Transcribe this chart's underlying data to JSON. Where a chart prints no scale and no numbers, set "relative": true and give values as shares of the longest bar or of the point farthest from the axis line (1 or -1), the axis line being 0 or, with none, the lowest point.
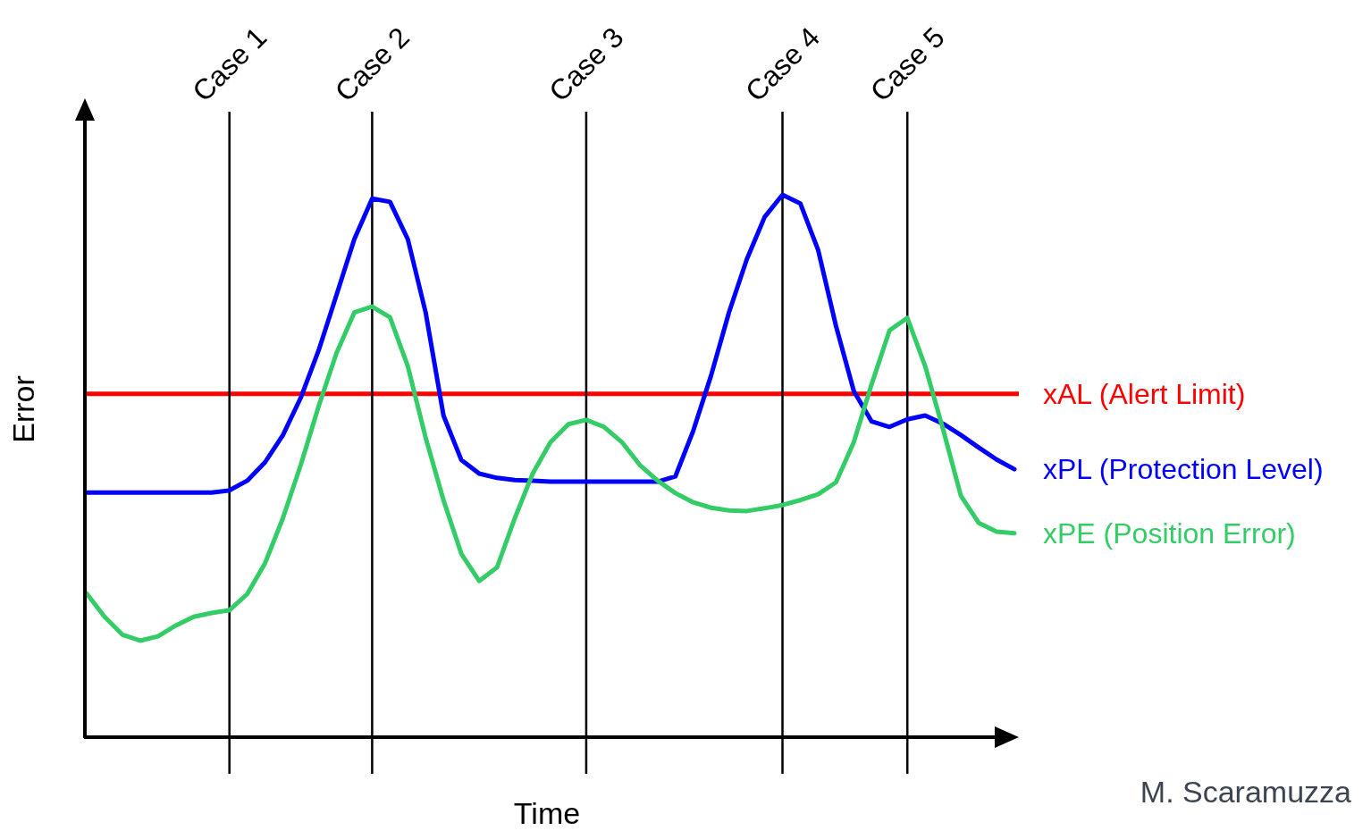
{
  "chart_data": {
    "type": "line",
    "relative": true,
    "xlabel": "Time",
    "ylabel": "Error",
    "line_style": "solid",
    "marker": "none",
    "categories": [
      null,
      null,
      null,
      null,
      null,
      null,
      null,
      null,
      "Case 1",
      null,
      null,
      null,
      null,
      null,
      null,
      null,
      "Case 2",
      null,
      null,
      null,
      null,
      null,
      null,
      null,
      null,
      null,
      null,
      null,
      "Case 3",
      null,
      null,
      null,
      null,
      null,
      null,
      null,
      null,
      null,
      null,
      "Case 4",
      null,
      null,
      null,
      null,
      null,
      null,
      "Case 5",
      null,
      null,
      null,
      null,
      null,
      null
    ],
    "series": [
      {
        "name": "xPL (Protection Level)",
        "color": "#0000ff",
        "values": [
          0.451,
          0.451,
          0.451,
          0.451,
          0.451,
          0.451,
          0.451,
          0.451,
          0.455,
          0.473,
          0.507,
          0.557,
          0.626,
          0.713,
          0.815,
          0.918,
          0.993,
          0.987,
          0.918,
          0.783,
          0.593,
          0.511,
          0.486,
          0.478,
          0.474,
          0.473,
          0.471,
          0.471,
          0.471,
          0.471,
          0.471,
          0.471,
          0.471,
          0.481,
          0.565,
          0.667,
          0.783,
          0.881,
          0.959,
          1.0,
          0.984,
          0.898,
          0.758,
          0.638,
          0.582,
          0.572,
          0.586,
          0.593,
          0.578,
          0.557,
          0.534,
          0.512,
          0.494
        ]
      },
      {
        "name": "xPE (Position Error)",
        "color": "#33cc66",
        "values": [
          0.265,
          0.222,
          0.189,
          0.178,
          0.186,
          0.206,
          0.222,
          0.229,
          0.234,
          0.264,
          0.321,
          0.404,
          0.502,
          0.61,
          0.708,
          0.783,
          0.794,
          0.774,
          0.684,
          0.552,
          0.437,
          0.338,
          0.288,
          0.313,
          0.404,
          0.486,
          0.544,
          0.577,
          0.585,
          0.572,
          0.544,
          0.502,
          0.473,
          0.45,
          0.433,
          0.423,
          0.418,
          0.417,
          0.422,
          0.428,
          0.437,
          0.448,
          0.47,
          0.544,
          0.651,
          0.75,
          0.773,
          0.684,
          0.568,
          0.445,
          0.395,
          0.379,
          0.376
        ]
      }
    ],
    "ref_lines": [
      {
        "axis": "y",
        "value": 0.633,
        "label": "xAL (Alert Limit)",
        "color": "#ff0000"
      },
      {
        "axis": "x",
        "value": "Case 1",
        "color": "#000000"
      },
      {
        "axis": "x",
        "value": "Case 2",
        "color": "#000000"
      },
      {
        "axis": "x",
        "value": "Case 3",
        "color": "#000000"
      },
      {
        "axis": "x",
        "value": "Case 4",
        "color": "#000000"
      },
      {
        "axis": "x",
        "value": "Case 5",
        "color": "#000000"
      }
    ],
    "annotations": [
      "M. Scaramuzza"
    ]
  }
}
